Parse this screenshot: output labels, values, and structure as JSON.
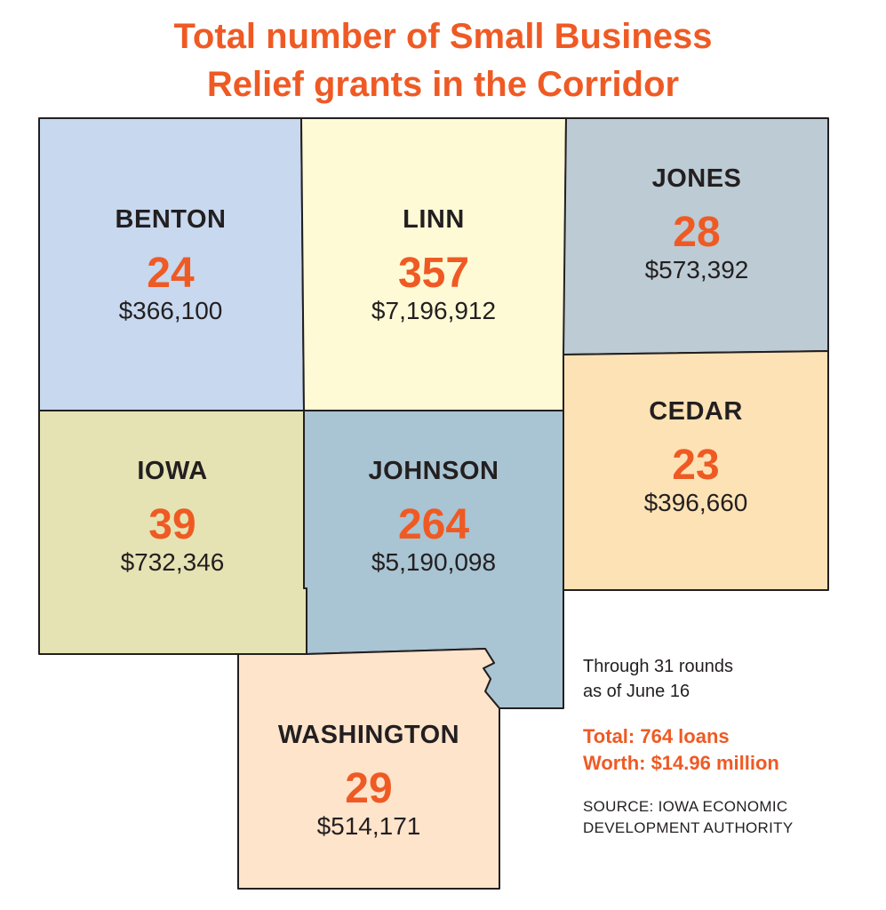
{
  "title": {
    "line1": "Total number of Small Business",
    "line2": "Relief grants in the Corridor"
  },
  "counties": [
    {
      "name": "BENTON",
      "count": "24",
      "amount": "$366,100",
      "color": "#c7d8ef"
    },
    {
      "name": "LINN",
      "count": "357",
      "amount": "$7,196,912",
      "color": "#fefad6"
    },
    {
      "name": "JONES",
      "count": "28",
      "amount": "$573,392",
      "color": "#bccbd4"
    },
    {
      "name": "IOWA",
      "count": "39",
      "amount": "$732,346",
      "color": "#e5e3b3"
    },
    {
      "name": "JOHNSON",
      "count": "264",
      "amount": "$5,190,098",
      "color": "#a9c4d2"
    },
    {
      "name": "CEDAR",
      "count": "23",
      "amount": "$396,660",
      "color": "#fde2b5"
    },
    {
      "name": "WASHINGTON",
      "count": "29",
      "amount": "$514,171",
      "color": "#fde4cb"
    }
  ],
  "notes": {
    "line1": "Through 31 rounds",
    "line2": "as of June 16",
    "total": "Total: 764 loans",
    "worth": "Worth: $14.96 million",
    "source1": "SOURCE: IOWA ECONOMIC",
    "source2": "DEVELOPMENT AUTHORITY"
  },
  "colors": {
    "accent": "#ef5a24",
    "text": "#231f20",
    "border": "#231f20"
  }
}
